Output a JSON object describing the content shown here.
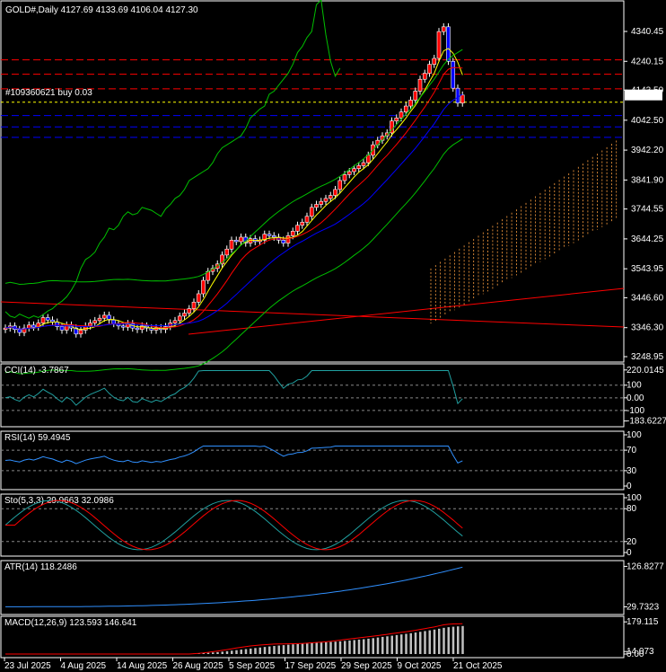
{
  "window": {
    "header": "GOLD#,Daily  4127.69 4133.69 4106.04 4127.30",
    "order_label": "#109360621 buy 0.03"
  },
  "price_panel": {
    "axis_labels": [
      "4340.45",
      "4240.15",
      "4143.50",
      "4042.50",
      "3942.20",
      "3841.90",
      "3744.55",
      "3644.25",
      "3543.95",
      "3446.60",
      "3346.30",
      "3248.95"
    ],
    "current_price": "4127.30"
  },
  "cci_panel": {
    "title": "CCI(14) -3.7867",
    "axis_labels": [
      "220.0145",
      "100",
      "0.00",
      "-100",
      "-183.6227"
    ]
  },
  "rsi_panel": {
    "title": "RSI(14) 59.4945",
    "axis_labels": [
      "100",
      "70",
      "30",
      "0"
    ]
  },
  "sto_panel": {
    "title": "Sto(5,3,3) 29.9663 32.0986",
    "axis_labels": [
      "100",
      "80",
      "20",
      "0"
    ]
  },
  "atr_panel": {
    "title": "ATR(14) 118.2486",
    "axis_labels": [
      "126.8277",
      "29.7323"
    ]
  },
  "macd_panel": {
    "title": "MACD(12,26,9) 123.593 146.641",
    "axis_labels": [
      "179.115",
      "14.073",
      "0.00"
    ]
  },
  "time_axis": [
    "23 Jul 2025",
    "4 Aug 2025",
    "14 Aug 2025",
    "26 Aug 2025",
    "5 Sep 2025",
    "17 Sep 2025",
    "29 Sep 2025",
    "9 Oct 2025",
    "21 Oct 2025"
  ],
  "colors": {
    "background": "#000000",
    "bull_candle": "#ff0000",
    "bear_candle": "#0000ff",
    "bollinger": "#00c000",
    "ma_fast": "#ffff00",
    "ma_mid": "#ff0000",
    "ma_slow": "#0000ff",
    "order_line": "#ffff00",
    "resistance": "#ff0000",
    "support": "#0000ff",
    "indicator_line": "#3090ff"
  }
}
